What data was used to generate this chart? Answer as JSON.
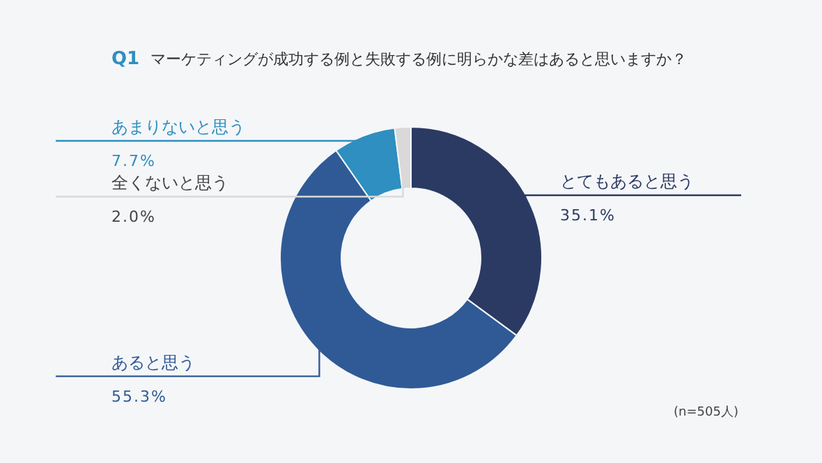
{
  "chart_data": {
    "type": "donut",
    "title": "Q1 マーケティングが成功する例と失敗する例に明らかな差はあると思いますか？",
    "categories": [
      "とてもあると思う",
      "あると思う",
      "あまりないと思う",
      "全くないと思う"
    ],
    "values": [
      35.1,
      55.3,
      7.7,
      2.0
    ],
    "value_labels": [
      "35.1%",
      "55.3%",
      "7.7%",
      "2.0%"
    ],
    "colors": [
      "#2b3a63",
      "#2f5a96",
      "#2e8fc0",
      "#d9d9d9"
    ],
    "annotations": [
      "(n=505人)"
    ]
  }
}
